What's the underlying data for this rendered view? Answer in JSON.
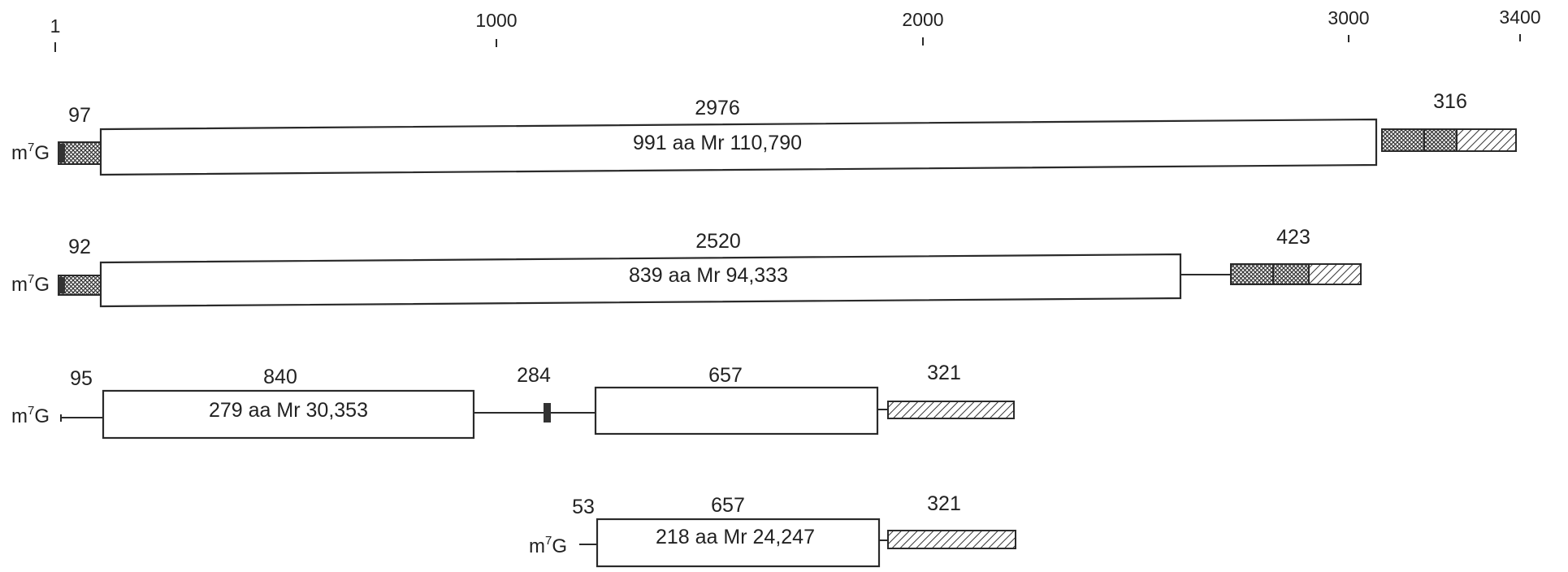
{
  "scale": {
    "ticks": [
      "1",
      "1000",
      "2000",
      "3000",
      "3400"
    ]
  },
  "cap": {
    "m": "m",
    "sup": "7",
    "g": "G"
  },
  "transcripts": [
    {
      "utr5": "97",
      "cds": "2976",
      "protein": "991 aa  Mr  110,790",
      "utr3": "316"
    },
    {
      "utr5": "92",
      "cds": "2520",
      "protein": "839 aa  Mr  94,333",
      "utr3": "423"
    },
    {
      "utr5": "95",
      "cds": "840",
      "protein": "279 aa  Mr  30,353",
      "intron": "284",
      "cds2": "657",
      "utr3": "321"
    },
    {
      "utr5": "53",
      "cds": "657",
      "protein": "218 aa  Mr  24,247",
      "utr3": "321"
    }
  ]
}
